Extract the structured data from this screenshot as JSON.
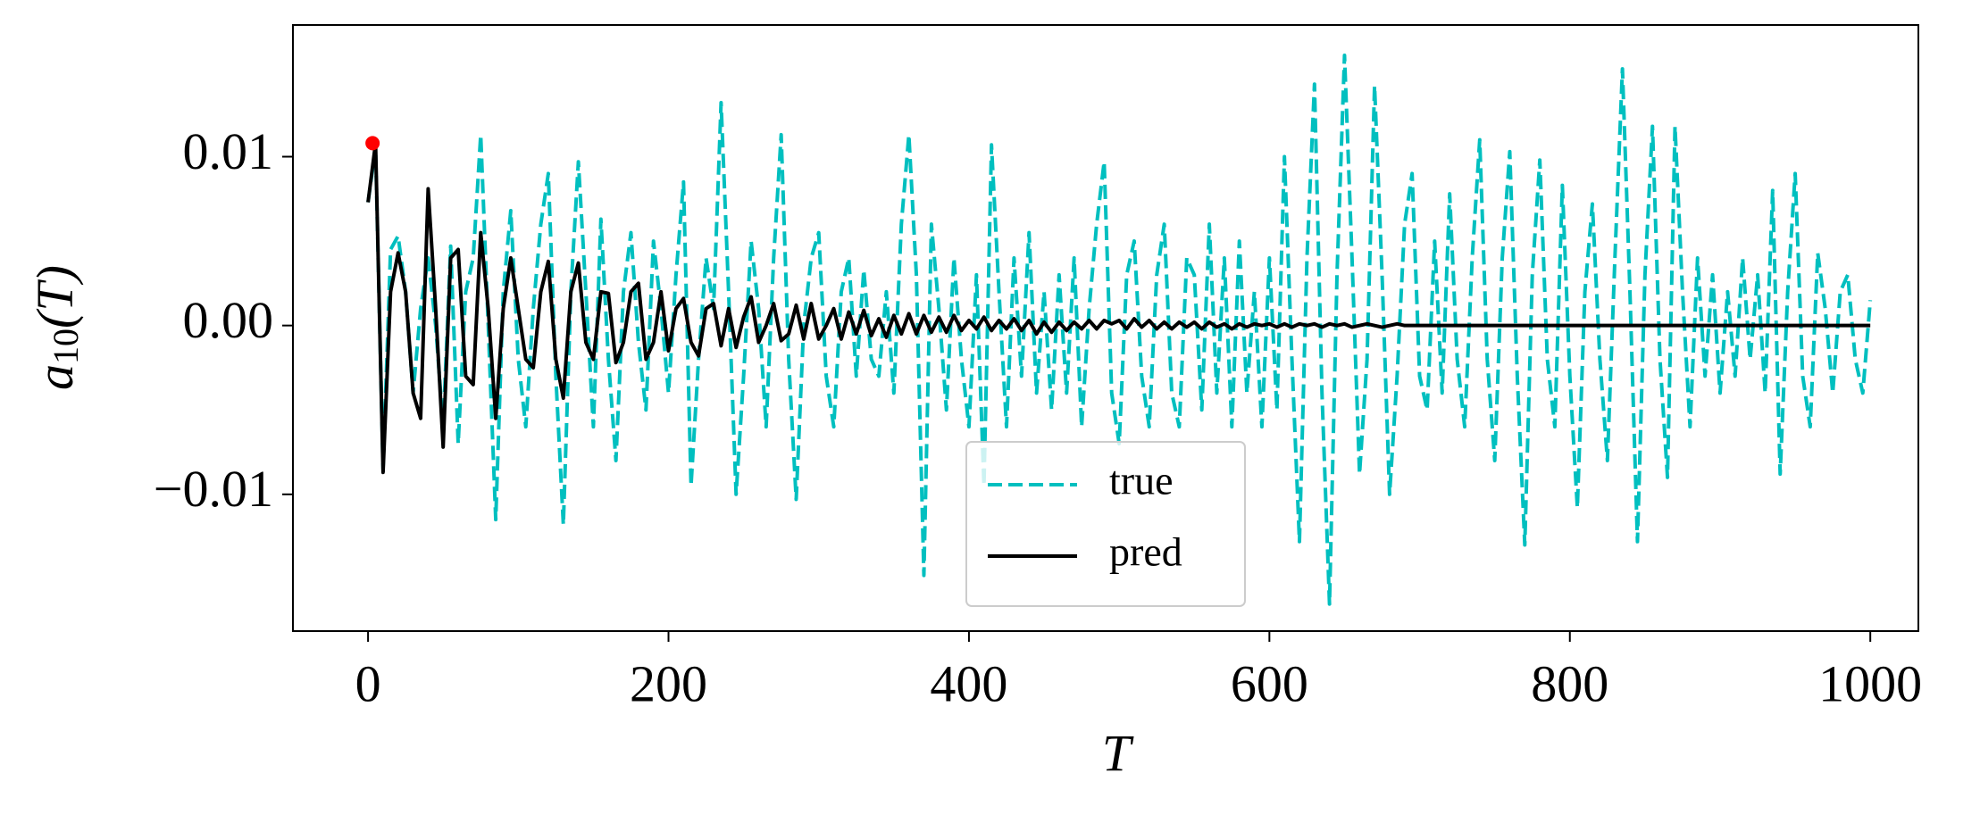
{
  "chart_data": {
    "type": "line",
    "xlabel": "T",
    "ylabel": [
      "a",
      "10",
      "(T)"
    ],
    "xlim": [
      -50,
      1032
    ],
    "ylim": [
      -0.0181,
      0.0178
    ],
    "xticks": [
      0,
      200,
      400,
      600,
      800,
      1000
    ],
    "yticks": [
      {
        "value": -0.01,
        "label": "−0.01"
      },
      {
        "value": 0,
        "label": "0.00"
      },
      0.01
    ],
    "legend": "lower center",
    "x": [
      0,
      5,
      10,
      15,
      20,
      25,
      30,
      35,
      40,
      45,
      50,
      55,
      60,
      65,
      70,
      75,
      80,
      85,
      90,
      95,
      100,
      105,
      110,
      115,
      120,
      125,
      130,
      135,
      140,
      145,
      150,
      155,
      160,
      165,
      170,
      175,
      180,
      185,
      190,
      195,
      200,
      205,
      210,
      215,
      220,
      225,
      230,
      235,
      240,
      245,
      250,
      255,
      260,
      265,
      270,
      275,
      280,
      285,
      290,
      295,
      300,
      305,
      310,
      315,
      320,
      325,
      330,
      335,
      340,
      345,
      350,
      355,
      360,
      365,
      370,
      375,
      380,
      385,
      390,
      395,
      400,
      405,
      410,
      415,
      420,
      425,
      430,
      435,
      440,
      445,
      450,
      455,
      460,
      465,
      470,
      475,
      480,
      485,
      490,
      495,
      500,
      505,
      510,
      515,
      520,
      525,
      530,
      535,
      540,
      545,
      550,
      555,
      560,
      565,
      570,
      575,
      580,
      585,
      590,
      595,
      600,
      605,
      610,
      615,
      620,
      625,
      630,
      635,
      640,
      645,
      650,
      655,
      660,
      665,
      670,
      675,
      680,
      685,
      690,
      695,
      700,
      705,
      710,
      715,
      720,
      725,
      730,
      735,
      740,
      745,
      750,
      755,
      760,
      765,
      770,
      775,
      780,
      785,
      790,
      795,
      800,
      805,
      810,
      815,
      820,
      825,
      830,
      835,
      840,
      845,
      850,
      855,
      860,
      865,
      870,
      875,
      880,
      885,
      890,
      895,
      900,
      905,
      910,
      915,
      920,
      925,
      930,
      935,
      940,
      945,
      950,
      955,
      960,
      965,
      970,
      975,
      980,
      985,
      990,
      995,
      1000
    ],
    "series": [
      {
        "name": "true",
        "color": "#00bfbf",
        "dashed": true,
        "values": [
          0.0073,
          0.0105,
          -0.0085,
          0.0045,
          0.0053,
          0.002,
          -0.004,
          0.001,
          0.004,
          0,
          -0.006,
          0.0047,
          -0.007,
          0.002,
          0.004,
          0.0113,
          0,
          -0.0115,
          0.002,
          0.0068,
          -0.002,
          -0.006,
          0.001,
          0.006,
          0.009,
          -0.003,
          -0.0118,
          0.002,
          0.0097,
          0.002,
          -0.006,
          0.0063,
          -0.002,
          -0.008,
          0.002,
          0.0055,
          -0.001,
          -0.005,
          0.005,
          0.001,
          -0.004,
          0.003,
          0.0085,
          -0.0095,
          -0.002,
          0.004,
          0.001,
          0.0132,
          0.002,
          -0.01,
          -0.003,
          0.005,
          0.001,
          -0.006,
          0.004,
          0.0113,
          -0.002,
          -0.0103,
          0,
          0.004,
          0.0055,
          -0.003,
          -0.006,
          0.002,
          0.004,
          -0.003,
          0.0033,
          -0.002,
          -0.003,
          0.002,
          -0.004,
          0.006,
          0.0113,
          0.003,
          -0.0148,
          0.006,
          0.001,
          -0.005,
          0.004,
          -0.002,
          -0.006,
          0.003,
          -0.0095,
          0.0107,
          0.002,
          -0.006,
          0.004,
          -0.003,
          0.0055,
          -0.004,
          0.002,
          -0.005,
          0.003,
          -0.004,
          0.004,
          -0.006,
          0.001,
          0.006,
          0.0097,
          -0.004,
          -0.007,
          0.003,
          0.005,
          -0.003,
          -0.006,
          0.003,
          0.006,
          -0.004,
          -0.006,
          0.004,
          0.003,
          -0.005,
          0.006,
          -0.004,
          0.004,
          -0.006,
          0.005,
          -0.004,
          0.002,
          -0.006,
          0.004,
          -0.005,
          0.01,
          -0.002,
          -0.0128,
          0.004,
          0.0143,
          -0.004,
          -0.0165,
          0.003,
          0.016,
          0.004,
          -0.0088,
          -0.002,
          0.0142,
          0.003,
          -0.01,
          -0.003,
          0.006,
          0.009,
          -0.003,
          -0.005,
          0.005,
          -0.004,
          0.0078,
          -0.002,
          -0.006,
          0.004,
          0.011,
          -0.002,
          -0.008,
          0.004,
          0.0103,
          -0.003,
          -0.013,
          0.003,
          0.0098,
          -0.002,
          -0.006,
          0.0083,
          -0.003,
          -0.0108,
          0.002,
          0.0072,
          -0.002,
          -0.008,
          0.004,
          0.0152,
          0.002,
          -0.0128,
          0.003,
          0.0118,
          -0.002,
          -0.009,
          0.0118,
          0.002,
          -0.006,
          0.004,
          -0.003,
          0.003,
          -0.004,
          0.002,
          -0.003,
          0.004,
          -0.002,
          0.003,
          -0.004,
          0.008,
          -0.0088,
          0.002,
          0.009,
          -0.003,
          -0.006,
          0.0043,
          0.001,
          -0.004,
          0.002,
          0.003,
          -0.002,
          -0.004,
          0.0015
        ]
      },
      {
        "name": "pred",
        "color": "#000000",
        "dashed": false,
        "values": [
          0.0073,
          0.0108,
          -0.0087,
          0.002,
          0.0043,
          0.002,
          -0.004,
          -0.0055,
          0.0081,
          0.001,
          -0.0072,
          0.004,
          0.0045,
          -0.003,
          -0.0035,
          0.0055,
          0.001,
          -0.0055,
          0.001,
          0.004,
          0.001,
          -0.002,
          -0.0025,
          0.002,
          0.0038,
          -0.002,
          -0.0043,
          0.002,
          0.0037,
          -0.001,
          -0.002,
          0.002,
          0.0019,
          -0.0022,
          -0.001,
          0.002,
          0.0025,
          -0.002,
          -0.001,
          0.002,
          -0.0015,
          0.001,
          0.0016,
          -0.001,
          -0.0018,
          0.001,
          0.0013,
          -0.0012,
          0.001,
          -0.0013,
          0.0005,
          0.0017,
          -0.001,
          0,
          0.0013,
          -0.0009,
          -0.0005,
          0.0012,
          -0.0008,
          0.0013,
          -0.0008,
          0,
          0.001,
          -0.0008,
          0.0008,
          -0.0005,
          0.0009,
          -0.0006,
          0.0004,
          -0.0007,
          0.0006,
          -0.0005,
          0.0007,
          -0.0005,
          0.0006,
          -0.0004,
          0.0005,
          -0.0004,
          0.0006,
          -0.0003,
          0.0003,
          -0.0002,
          0.0005,
          -0.0003,
          0.0003,
          -0.0002,
          0.0004,
          -0.0003,
          0.0003,
          -0.0005,
          0.0002,
          -0.0004,
          0.0002,
          -0.0003,
          0.0002,
          -0.0002,
          0.0003,
          -0.0002,
          0.0003,
          0.0001,
          0.0003,
          -0.0002,
          0.0004,
          -0.0001,
          0.0003,
          -0.0002,
          0.0002,
          -0.0002,
          0.0002,
          -0.0001,
          0.0002,
          -0.0002,
          0.0002,
          -0.0001,
          0.0001,
          -0.0002,
          0.0001,
          -0.0001,
          0.0001,
          0,
          0.0001,
          -0.0001,
          0.0001,
          -0.0001,
          0.0001,
          0,
          0.0001,
          -0.0001,
          0.0001,
          0,
          0.0001,
          -0.0001,
          0,
          0.0001,
          0,
          -0.0001,
          0,
          0.0001,
          0,
          0,
          0,
          0,
          0,
          0,
          0,
          0,
          0,
          0,
          0,
          0,
          0,
          0,
          0,
          0,
          0,
          0,
          0,
          0,
          0,
          0,
          0,
          0,
          0,
          0,
          0,
          0,
          0,
          0,
          0,
          0,
          0,
          0,
          0,
          0,
          0,
          0,
          0,
          0,
          0,
          0,
          0,
          0,
          0,
          0,
          0,
          0,
          0,
          0,
          0,
          0,
          0,
          0,
          0,
          0,
          0,
          0,
          0,
          0,
          0,
          0,
          0
        ]
      }
    ],
    "markers": [
      {
        "x": 3,
        "y": 0.0108,
        "color": "#ff0000"
      }
    ]
  }
}
